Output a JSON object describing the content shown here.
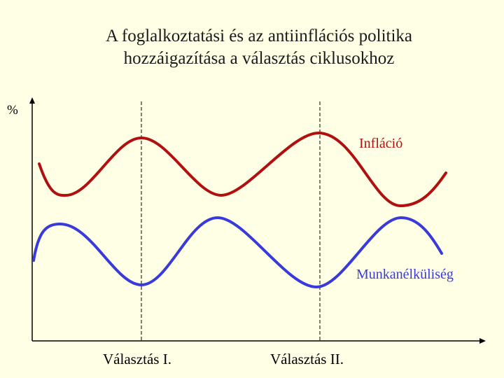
{
  "title_line1": "A foglalkoztatási és az antiinflációs politika",
  "title_line2": "hozzáigazítása a választás ciklusokhoz",
  "y_axis_label": "%",
  "inflation_label": "Infláció",
  "unemployment_label": "Munkanélküliség",
  "election1_label": "Választás I.",
  "election2_label": "Választás II.",
  "colors": {
    "inflation": "#b01010",
    "unemployment": "#3a3adc",
    "background": "#ffffe5"
  }
}
